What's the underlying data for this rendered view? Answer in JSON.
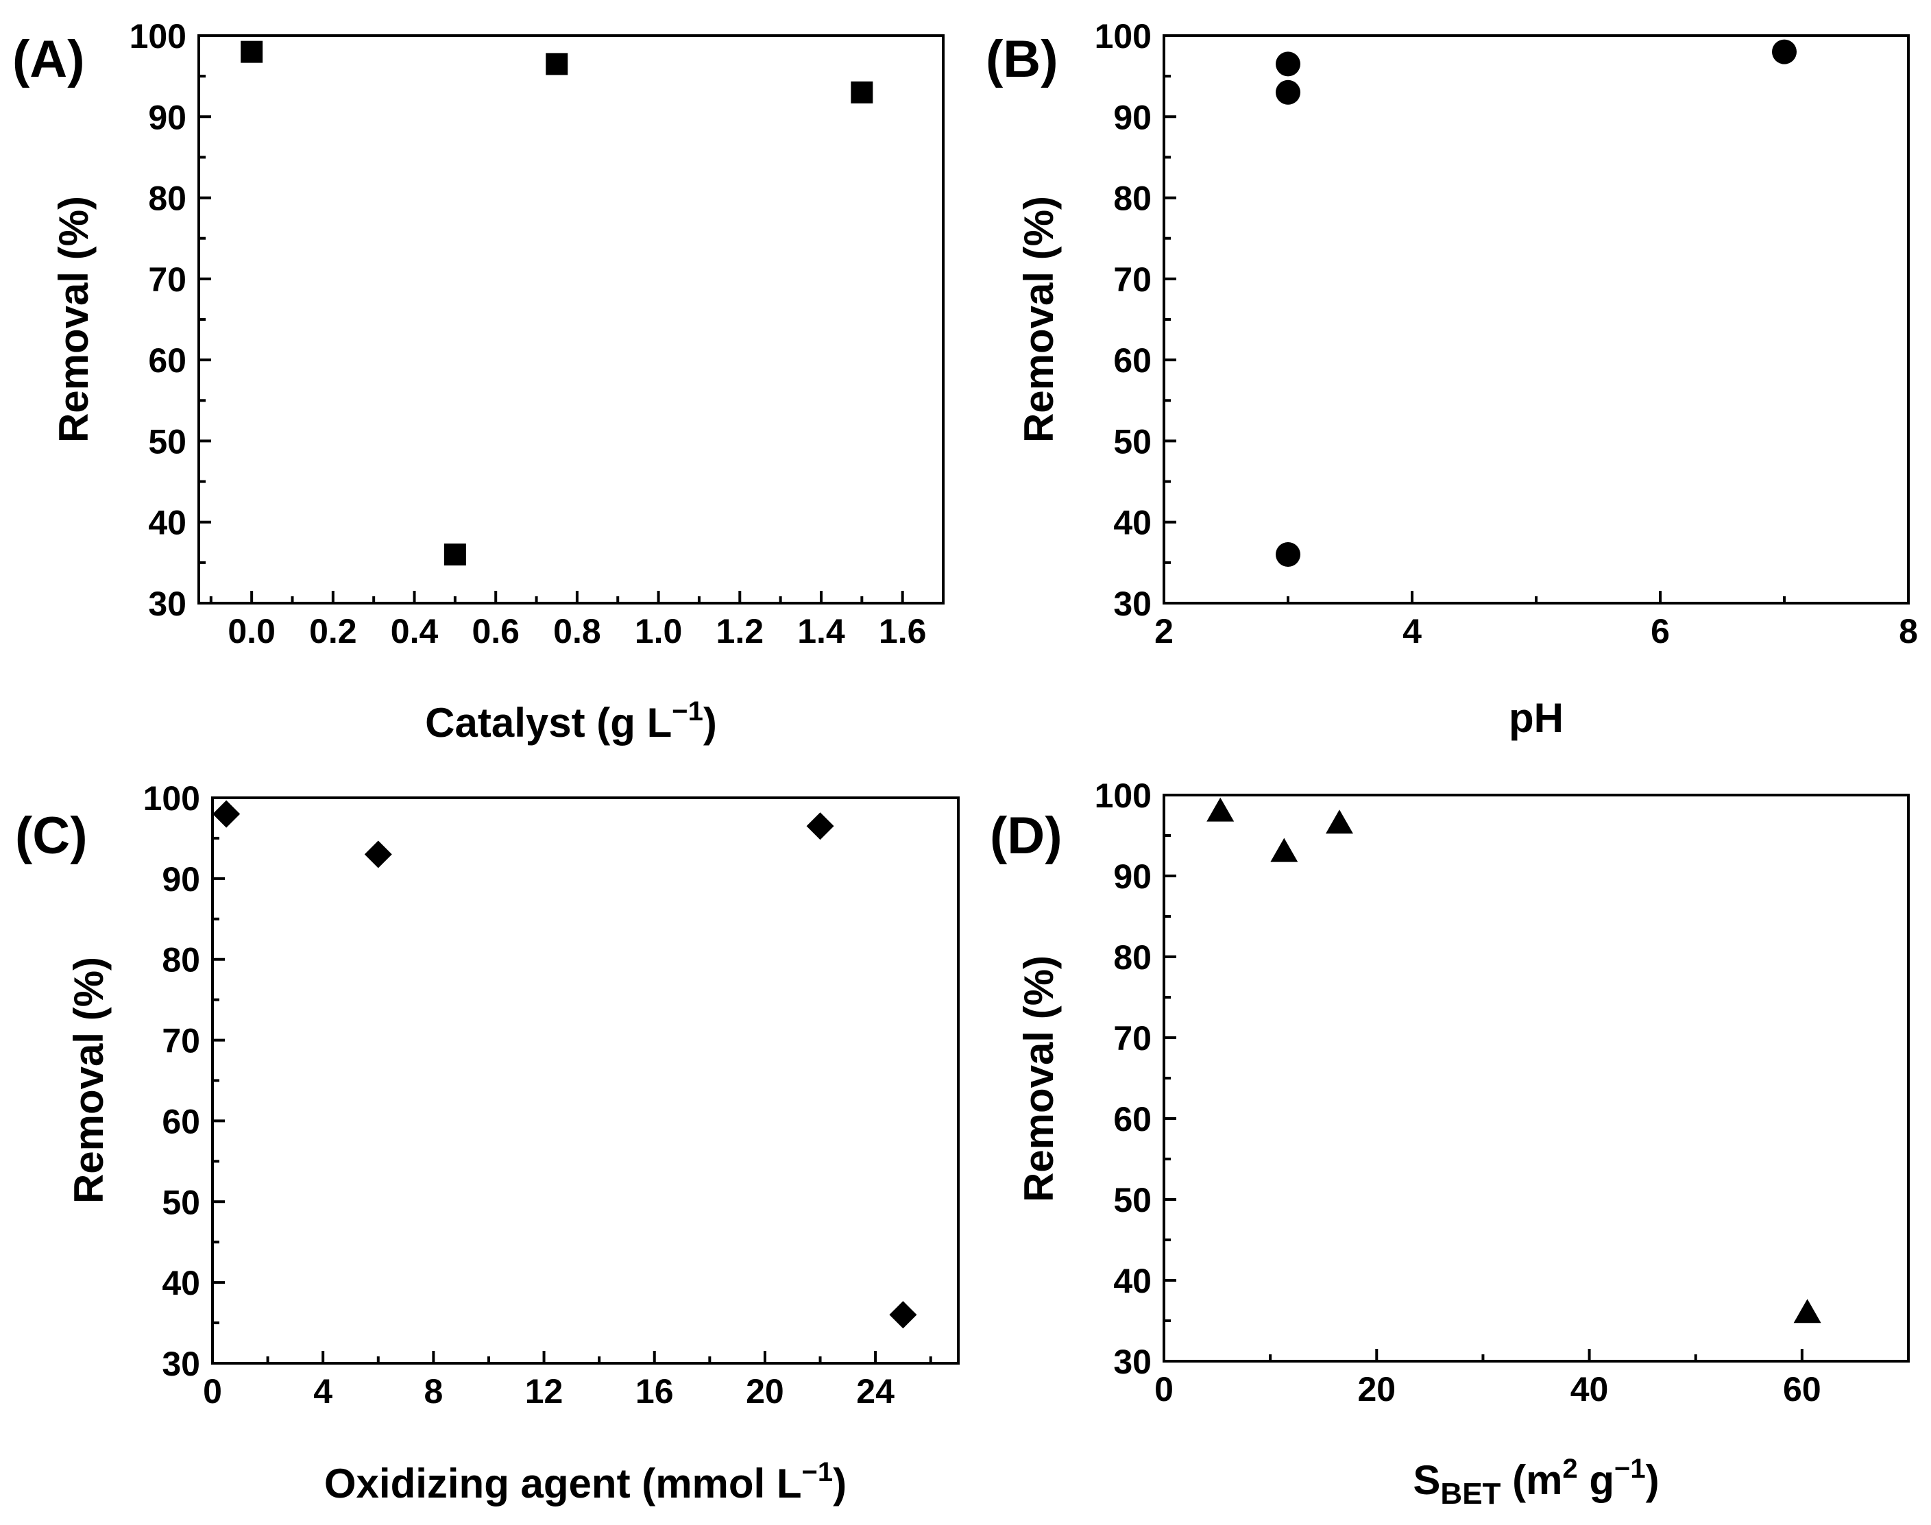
{
  "colors": {
    "marker": "#000000",
    "axis": "#000000",
    "background": "#ffffff"
  },
  "chart_data": [
    {
      "panel": "(A)",
      "type": "scatter",
      "marker": "square",
      "xlabel": "Catalyst (g L",
      "xlabel_sup": "−1",
      "xlabel_end": ")",
      "ylabel": "Removal (%)",
      "xlim": [
        -0.13,
        1.7
      ],
      "ylim": [
        30,
        100
      ],
      "xticks": [
        0.0,
        0.2,
        0.4,
        0.6,
        0.8,
        1.0,
        1.2,
        1.4,
        1.6
      ],
      "xtick_labels": [
        "0.0",
        "0.2",
        "0.4",
        "0.6",
        "0.8",
        "1.0",
        "1.2",
        "1.4",
        "1.6"
      ],
      "yticks": [
        30,
        40,
        50,
        60,
        70,
        80,
        90,
        100
      ],
      "ytick_labels": [
        "30",
        "40",
        "50",
        "60",
        "70",
        "80",
        "90",
        "100"
      ],
      "points": [
        {
          "x": 0.0,
          "y": 98
        },
        {
          "x": 0.5,
          "y": 36
        },
        {
          "x": 0.75,
          "y": 96.5
        },
        {
          "x": 1.5,
          "y": 93
        }
      ]
    },
    {
      "panel": "(B)",
      "type": "scatter",
      "marker": "circle",
      "xlabel": "pH",
      "ylabel": "Removal (%)",
      "xlim": [
        2,
        8
      ],
      "ylim": [
        30,
        100
      ],
      "xticks": [
        2,
        4,
        6,
        8
      ],
      "xtick_labels": [
        "2",
        "4",
        "6",
        "8"
      ],
      "yticks": [
        30,
        40,
        50,
        60,
        70,
        80,
        90,
        100
      ],
      "ytick_labels": [
        "30",
        "40",
        "50",
        "60",
        "70",
        "80",
        "90",
        "100"
      ],
      "points": [
        {
          "x": 3,
          "y": 96.5
        },
        {
          "x": 3,
          "y": 93
        },
        {
          "x": 3,
          "y": 36
        },
        {
          "x": 7,
          "y": 98
        }
      ]
    },
    {
      "panel": "(C)",
      "type": "scatter",
      "marker": "diamond",
      "xlabel": "Oxidizing agent (mmol L",
      "xlabel_sup": "−1",
      "xlabel_end": ")",
      "ylabel": "Removal (%)",
      "xlim": [
        0,
        27
      ],
      "ylim": [
        30,
        100
      ],
      "xticks": [
        0,
        4,
        8,
        12,
        16,
        20,
        24
      ],
      "xtick_labels": [
        "0",
        "4",
        "8",
        "12",
        "16",
        "20",
        "24"
      ],
      "yticks": [
        30,
        40,
        50,
        60,
        70,
        80,
        90,
        100
      ],
      "ytick_labels": [
        "30",
        "40",
        "50",
        "60",
        "70",
        "80",
        "90",
        "100"
      ],
      "points": [
        {
          "x": 0.5,
          "y": 98
        },
        {
          "x": 6,
          "y": 93
        },
        {
          "x": 22,
          "y": 96.5
        },
        {
          "x": 25,
          "y": 36
        }
      ]
    },
    {
      "panel": "(D)",
      "type": "scatter",
      "marker": "triangle",
      "xlabel": "S",
      "xlabel_sub": "BET",
      "xlabel_mid": " (m",
      "xlabel_sup": "2",
      "xlabel_mid2": " g",
      "xlabel_sup2": "−1",
      "xlabel_end": ")",
      "ylabel": "Removal (%)",
      "xlim": [
        0,
        70
      ],
      "ylim": [
        30,
        100
      ],
      "xticks": [
        0,
        20,
        40,
        60
      ],
      "xtick_labels": [
        "0",
        "20",
        "40",
        "60"
      ],
      "yticks": [
        30,
        40,
        50,
        60,
        70,
        80,
        90,
        100
      ],
      "ytick_labels": [
        "30",
        "40",
        "50",
        "60",
        "70",
        "80",
        "90",
        "100"
      ],
      "points": [
        {
          "x": 5.3,
          "y": 98
        },
        {
          "x": 11.3,
          "y": 93
        },
        {
          "x": 16.5,
          "y": 96.5
        },
        {
          "x": 60.5,
          "y": 36
        }
      ]
    }
  ]
}
